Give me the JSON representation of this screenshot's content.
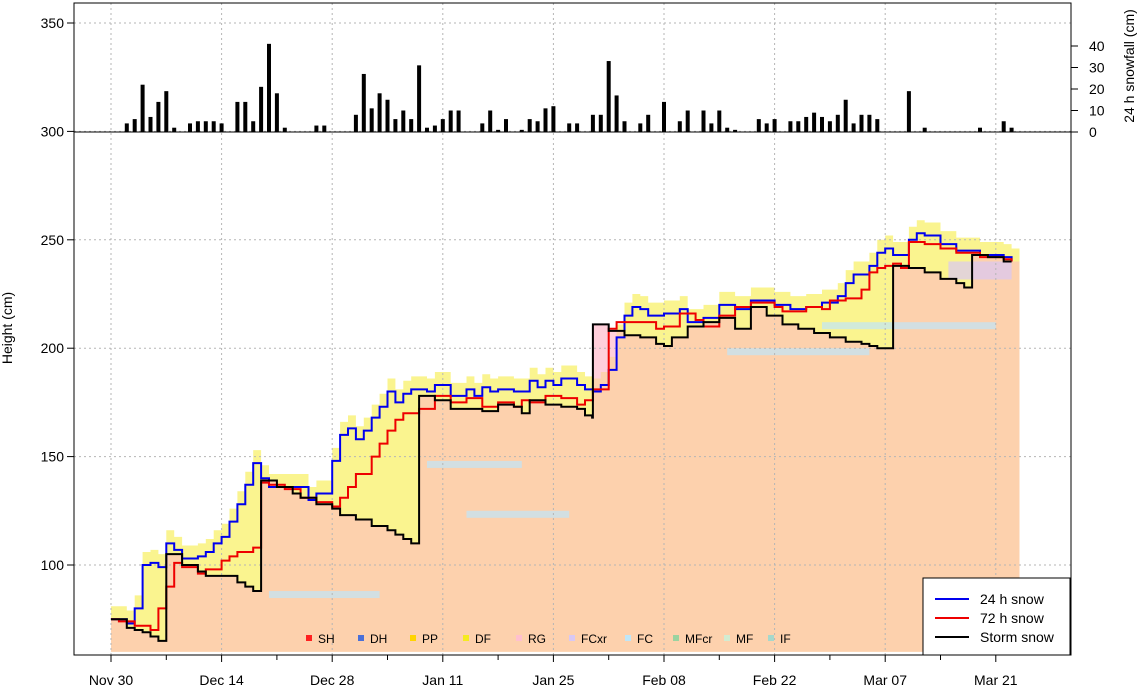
{
  "chart_data": {
    "type": "line",
    "ylabel": "Height (cm)",
    "y2label": "24 h snowfall (cm)",
    "ylim": [
      60,
      362
    ],
    "y_ticks": [
      100,
      150,
      200,
      250,
      300,
      350
    ],
    "y2_ticks": [
      0,
      10,
      20,
      30,
      40
    ],
    "x_ticks": [
      {
        "label": "Nov 30",
        "day": 0
      },
      {
        "label": "Dec 14",
        "day": 14
      },
      {
        "label": "Dec 28",
        "day": 28
      },
      {
        "label": "Jan 11",
        "day": 42
      },
      {
        "label": "Jan 25",
        "day": 56
      },
      {
        "label": "Feb 08",
        "day": 70
      },
      {
        "label": "Feb 22",
        "day": 84
      },
      {
        "label": "Mar 07",
        "day": 98
      },
      {
        "label": "Mar 21",
        "day": 112
      }
    ],
    "legend_position": "bottom-right",
    "grid": true,
    "series": [
      {
        "name": "24 h snow",
        "color": "#0000ee",
        "points": [
          [
            0,
            75
          ],
          [
            2,
            73
          ],
          [
            3,
            80
          ],
          [
            4,
            100
          ],
          [
            5,
            101
          ],
          [
            6,
            99
          ],
          [
            7,
            110
          ],
          [
            8,
            107
          ],
          [
            9,
            103
          ],
          [
            10,
            103
          ],
          [
            11,
            104
          ],
          [
            12,
            106
          ],
          [
            13,
            110
          ],
          [
            14,
            113
          ],
          [
            15,
            120
          ],
          [
            16,
            128
          ],
          [
            17,
            137
          ],
          [
            18,
            147
          ],
          [
            19,
            140
          ],
          [
            20,
            136
          ],
          [
            22,
            136
          ],
          [
            25,
            130
          ],
          [
            26,
            133
          ],
          [
            28,
            148
          ],
          [
            29,
            160
          ],
          [
            30,
            163
          ],
          [
            31,
            158
          ],
          [
            32,
            162
          ],
          [
            33,
            168
          ],
          [
            34,
            173
          ],
          [
            35,
            180
          ],
          [
            36,
            175
          ],
          [
            37,
            179
          ],
          [
            38,
            181
          ],
          [
            40,
            180
          ],
          [
            41,
            183
          ],
          [
            43,
            178
          ],
          [
            45,
            181
          ],
          [
            46,
            178
          ],
          [
            47,
            182
          ],
          [
            48,
            180
          ],
          [
            49,
            181
          ],
          [
            51,
            180
          ],
          [
            53,
            185
          ],
          [
            54,
            182
          ],
          [
            55,
            185
          ],
          [
            56,
            183
          ],
          [
            57,
            186
          ],
          [
            59,
            183
          ],
          [
            60,
            181
          ],
          [
            61,
            180
          ],
          [
            62,
            183
          ],
          [
            63,
            190
          ],
          [
            64,
            205
          ],
          [
            65,
            215
          ],
          [
            66,
            219
          ],
          [
            67,
            218
          ],
          [
            68,
            215
          ],
          [
            70,
            216
          ],
          [
            72,
            218
          ],
          [
            73,
            212
          ],
          [
            75,
            214
          ],
          [
            77,
            220
          ],
          [
            79,
            218
          ],
          [
            81,
            222
          ],
          [
            84,
            220
          ],
          [
            86,
            218
          ],
          [
            88,
            219
          ],
          [
            90,
            221
          ],
          [
            92,
            224
          ],
          [
            93,
            230
          ],
          [
            94,
            234
          ],
          [
            96,
            238
          ],
          [
            97,
            244
          ],
          [
            98,
            246
          ],
          [
            99,
            243
          ],
          [
            101,
            250
          ],
          [
            102,
            253
          ],
          [
            103,
            252
          ],
          [
            105,
            248
          ],
          [
            107,
            245
          ],
          [
            110,
            243
          ],
          [
            113,
            242
          ],
          [
            114,
            240
          ]
        ]
      },
      {
        "name": "72 h snow",
        "color": "#ee0000",
        "points": [
          [
            0,
            75
          ],
          [
            1,
            74
          ],
          [
            3,
            72
          ],
          [
            5,
            70
          ],
          [
            6,
            80
          ],
          [
            7,
            90
          ],
          [
            8,
            101
          ],
          [
            9,
            99
          ],
          [
            11,
            96
          ],
          [
            12,
            98
          ],
          [
            14,
            102
          ],
          [
            15,
            104
          ],
          [
            16,
            106
          ],
          [
            18,
            108
          ],
          [
            19,
            138
          ],
          [
            20,
            137
          ],
          [
            22,
            135
          ],
          [
            24,
            131
          ],
          [
            26,
            129
          ],
          [
            28,
            127
          ],
          [
            29,
            131
          ],
          [
            30,
            136
          ],
          [
            31,
            142
          ],
          [
            33,
            150
          ],
          [
            34,
            156
          ],
          [
            35,
            162
          ],
          [
            36,
            167
          ],
          [
            37,
            170
          ],
          [
            39,
            172
          ],
          [
            41,
            178
          ],
          [
            43,
            175
          ],
          [
            45,
            177
          ],
          [
            47,
            173
          ],
          [
            49,
            175
          ],
          [
            51,
            173
          ],
          [
            52,
            176
          ],
          [
            53,
            175
          ],
          [
            55,
            178
          ],
          [
            57,
            177
          ],
          [
            59,
            174
          ],
          [
            60,
            176
          ],
          [
            61,
            181
          ],
          [
            63,
            209
          ],
          [
            64,
            212
          ],
          [
            67,
            212
          ],
          [
            69,
            209
          ],
          [
            70,
            210
          ],
          [
            72,
            216
          ],
          [
            74,
            213
          ],
          [
            75,
            210
          ],
          [
            77,
            215
          ],
          [
            79,
            219
          ],
          [
            81,
            221
          ],
          [
            84,
            219
          ],
          [
            85,
            217
          ],
          [
            88,
            219
          ],
          [
            90,
            218
          ],
          [
            91,
            222
          ],
          [
            93,
            223
          ],
          [
            95,
            227
          ],
          [
            96,
            235
          ],
          [
            97,
            237
          ],
          [
            98,
            238
          ],
          [
            99,
            239
          ],
          [
            100,
            237
          ],
          [
            101,
            249
          ],
          [
            103,
            248
          ],
          [
            105,
            246
          ],
          [
            107,
            244
          ],
          [
            110,
            242
          ],
          [
            113,
            241
          ],
          [
            114,
            240
          ]
        ]
      },
      {
        "name": "Storm snow",
        "color": "#000000",
        "points": [
          [
            0,
            75
          ],
          [
            2,
            71
          ],
          [
            3,
            70
          ],
          [
            4,
            69
          ],
          [
            5,
            67
          ],
          [
            6,
            65
          ],
          [
            6.9,
            65
          ],
          [
            7,
            105
          ],
          [
            9,
            100
          ],
          [
            11,
            97
          ],
          [
            12,
            95
          ],
          [
            14,
            95
          ],
          [
            16,
            92
          ],
          [
            17,
            90
          ],
          [
            18,
            88
          ],
          [
            18.9,
            88
          ],
          [
            19,
            139
          ],
          [
            21,
            136
          ],
          [
            23,
            133
          ],
          [
            24,
            131
          ],
          [
            26,
            128
          ],
          [
            28,
            126
          ],
          [
            29,
            123
          ],
          [
            31,
            121
          ],
          [
            33,
            118
          ],
          [
            35,
            116
          ],
          [
            36,
            114
          ],
          [
            37,
            112
          ],
          [
            38,
            110
          ],
          [
            38.9,
            110
          ],
          [
            39,
            178
          ],
          [
            41,
            176
          ],
          [
            43,
            172
          ],
          [
            45,
            172
          ],
          [
            47,
            171
          ],
          [
            49,
            174
          ],
          [
            51,
            173
          ],
          [
            52,
            170
          ],
          [
            53,
            176
          ],
          [
            55,
            174
          ],
          [
            57,
            173
          ],
          [
            59,
            172
          ],
          [
            60,
            169
          ],
          [
            60.9,
            168
          ],
          [
            61,
            211
          ],
          [
            63,
            208
          ],
          [
            65,
            206
          ],
          [
            67,
            205
          ],
          [
            69,
            202
          ],
          [
            70,
            201
          ],
          [
            71,
            205
          ],
          [
            73,
            210
          ],
          [
            75,
            212
          ],
          [
            77,
            214
          ],
          [
            79,
            209
          ],
          [
            81,
            219
          ],
          [
            83,
            215
          ],
          [
            85,
            211
          ],
          [
            87,
            209
          ],
          [
            89,
            207
          ],
          [
            91,
            205
          ],
          [
            93,
            203
          ],
          [
            95,
            202
          ],
          [
            96,
            201
          ],
          [
            97,
            200
          ],
          [
            98,
            200
          ],
          [
            98.9,
            200
          ],
          [
            99,
            238
          ],
          [
            101,
            237
          ],
          [
            103,
            235
          ],
          [
            105,
            232
          ],
          [
            107,
            230
          ],
          [
            108,
            228
          ],
          [
            108.9,
            228
          ],
          [
            109,
            243
          ],
          [
            111,
            242
          ],
          [
            113,
            240
          ],
          [
            114,
            240
          ]
        ]
      }
    ],
    "snowfall_24h": [
      {
        "day": 2,
        "cm": 4
      },
      {
        "day": 3,
        "cm": 6
      },
      {
        "day": 4,
        "cm": 22
      },
      {
        "day": 5,
        "cm": 7
      },
      {
        "day": 6,
        "cm": 14
      },
      {
        "day": 7,
        "cm": 19
      },
      {
        "day": 8,
        "cm": 2
      },
      {
        "day": 10,
        "cm": 4
      },
      {
        "day": 11,
        "cm": 5
      },
      {
        "day": 12,
        "cm": 5
      },
      {
        "day": 13,
        "cm": 5
      },
      {
        "day": 14,
        "cm": 4
      },
      {
        "day": 16,
        "cm": 14
      },
      {
        "day": 17,
        "cm": 14
      },
      {
        "day": 18,
        "cm": 5
      },
      {
        "day": 19,
        "cm": 21
      },
      {
        "day": 20,
        "cm": 41
      },
      {
        "day": 21,
        "cm": 18
      },
      {
        "day": 22,
        "cm": 2
      },
      {
        "day": 26,
        "cm": 3
      },
      {
        "day": 27,
        "cm": 3
      },
      {
        "day": 31,
        "cm": 8
      },
      {
        "day": 32,
        "cm": 27
      },
      {
        "day": 33,
        "cm": 11
      },
      {
        "day": 34,
        "cm": 18
      },
      {
        "day": 35,
        "cm": 15
      },
      {
        "day": 36,
        "cm": 6
      },
      {
        "day": 37,
        "cm": 10
      },
      {
        "day": 38,
        "cm": 6
      },
      {
        "day": 39,
        "cm": 31
      },
      {
        "day": 40,
        "cm": 2
      },
      {
        "day": 41,
        "cm": 3
      },
      {
        "day": 42,
        "cm": 6
      },
      {
        "day": 43,
        "cm": 10
      },
      {
        "day": 44,
        "cm": 10
      },
      {
        "day": 47,
        "cm": 4
      },
      {
        "day": 48,
        "cm": 10
      },
      {
        "day": 49,
        "cm": 1
      },
      {
        "day": 50,
        "cm": 6
      },
      {
        "day": 52,
        "cm": 1
      },
      {
        "day": 53,
        "cm": 6
      },
      {
        "day": 54,
        "cm": 5
      },
      {
        "day": 55,
        "cm": 11
      },
      {
        "day": 56,
        "cm": 12
      },
      {
        "day": 58,
        "cm": 4
      },
      {
        "day": 59,
        "cm": 4
      },
      {
        "day": 61,
        "cm": 8
      },
      {
        "day": 62,
        "cm": 8
      },
      {
        "day": 63,
        "cm": 33
      },
      {
        "day": 64,
        "cm": 17
      },
      {
        "day": 65,
        "cm": 5
      },
      {
        "day": 67,
        "cm": 4
      },
      {
        "day": 68,
        "cm": 8
      },
      {
        "day": 70,
        "cm": 14
      },
      {
        "day": 72,
        "cm": 5
      },
      {
        "day": 73,
        "cm": 10
      },
      {
        "day": 75,
        "cm": 10
      },
      {
        "day": 76,
        "cm": 4
      },
      {
        "day": 77,
        "cm": 10
      },
      {
        "day": 78,
        "cm": 2
      },
      {
        "day": 79,
        "cm": 1
      },
      {
        "day": 82,
        "cm": 6
      },
      {
        "day": 83,
        "cm": 4
      },
      {
        "day": 84,
        "cm": 6
      },
      {
        "day": 86,
        "cm": 5
      },
      {
        "day": 87,
        "cm": 5
      },
      {
        "day": 88,
        "cm": 7
      },
      {
        "day": 89,
        "cm": 9
      },
      {
        "day": 90,
        "cm": 7
      },
      {
        "day": 91,
        "cm": 5
      },
      {
        "day": 92,
        "cm": 8
      },
      {
        "day": 93,
        "cm": 15
      },
      {
        "day": 94,
        "cm": 4
      },
      {
        "day": 95,
        "cm": 8
      },
      {
        "day": 96,
        "cm": 8
      },
      {
        "day": 97,
        "cm": 6
      },
      {
        "day": 101,
        "cm": 19
      },
      {
        "day": 103,
        "cm": 2
      },
      {
        "day": 110,
        "cm": 2
      },
      {
        "day": 113,
        "cm": 5
      },
      {
        "day": 114,
        "cm": 2
      }
    ],
    "grain_types": [
      {
        "code": "SH",
        "color": "#ff2020"
      },
      {
        "code": "DH",
        "color": "#4a70d8"
      },
      {
        "code": "PP",
        "color": "#ffd400"
      },
      {
        "code": "DF",
        "color": "#f5ea20"
      },
      {
        "code": "RG",
        "color": "#ffc0cf"
      },
      {
        "code": "FCxr",
        "color": "#d8c8f4"
      },
      {
        "code": "FC",
        "color": "#bfe6f8"
      },
      {
        "code": "MFcr",
        "color": "#9ad3a0"
      },
      {
        "code": "MF",
        "color": "#d2ecd2"
      },
      {
        "code": "IF",
        "color": "#a6d8cc"
      }
    ]
  }
}
